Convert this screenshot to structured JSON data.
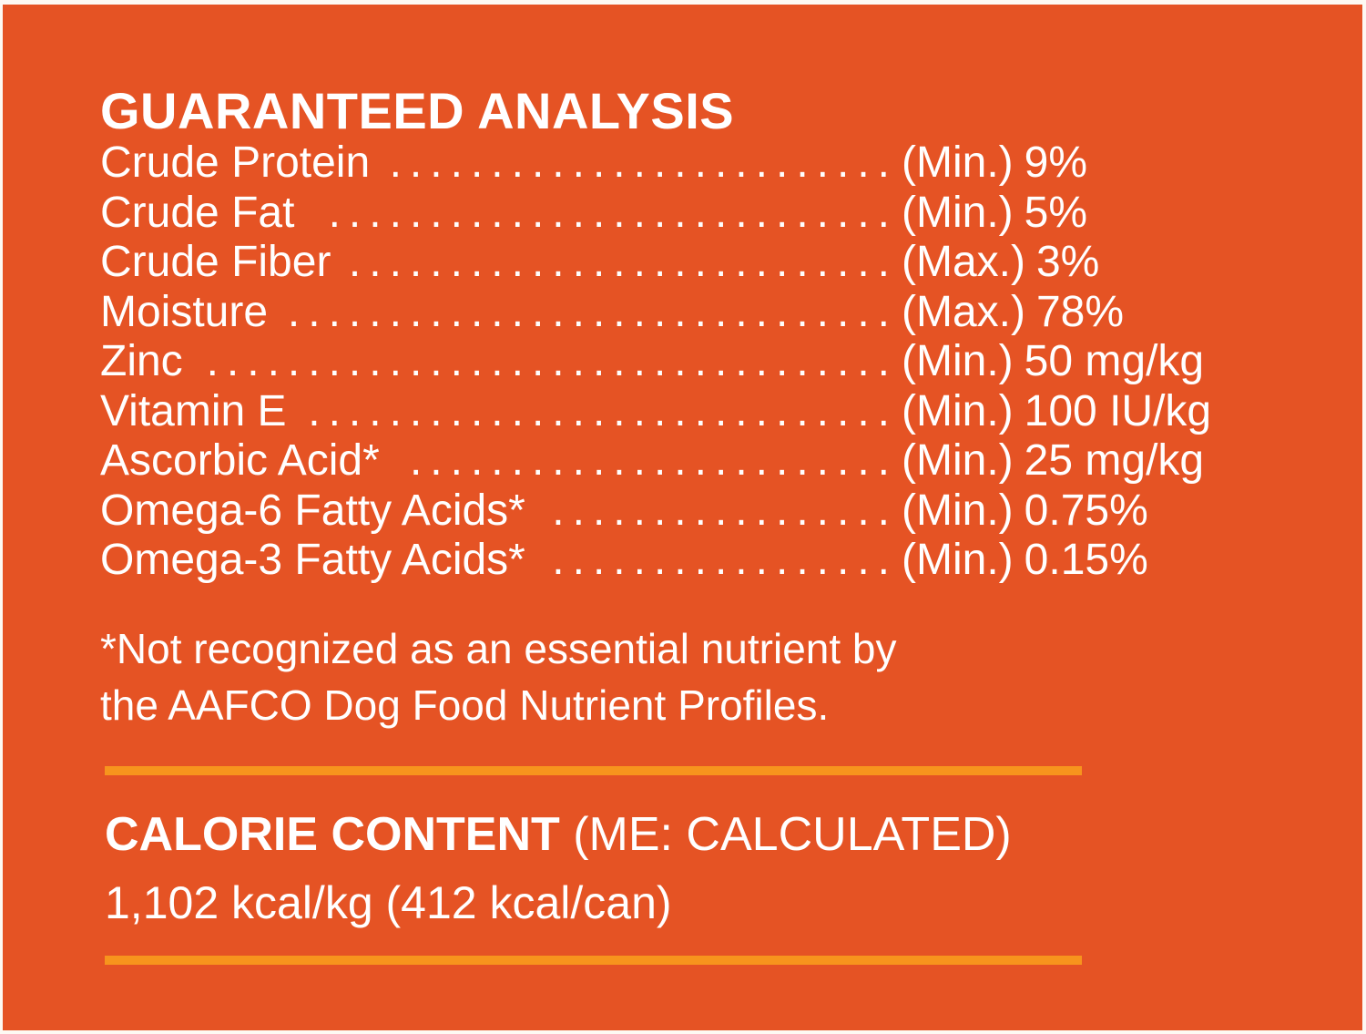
{
  "colors": {
    "background": "#E55324",
    "accent": "#F7941D",
    "text": "#FFFFFF"
  },
  "guaranteed_analysis": {
    "title": "GUARANTEED ANALYSIS",
    "rows": [
      {
        "label": "Crude Protein",
        "qualifier": "(Min.)",
        "value": "9%"
      },
      {
        "label": "Crude Fat",
        "qualifier": "(Min.)",
        "value": "5%"
      },
      {
        "label": "Crude Fiber",
        "qualifier": "(Max.)",
        "value": "3%"
      },
      {
        "label": "Moisture",
        "qualifier": "(Max.)",
        "value": "78%"
      },
      {
        "label": "Zinc",
        "qualifier": "(Min.)",
        "value": "50 mg/kg"
      },
      {
        "label": "Vitamin E",
        "qualifier": "(Min.)",
        "value": "100 IU/kg"
      },
      {
        "label": "Ascorbic Acid*",
        "qualifier": "(Min.)",
        "value": "25 mg/kg"
      },
      {
        "label": "Omega-6 Fatty Acids*",
        "qualifier": "(Min.)",
        "value": "0.75%"
      },
      {
        "label": "Omega-3 Fatty Acids*",
        "qualifier": "(Min.)",
        "value": "0.15%"
      }
    ],
    "footnote_line1": "*Not recognized as an essential nutrient by",
    "footnote_line2": "the AAFCO Dog Food Nutrient Profiles."
  },
  "calorie_content": {
    "title": "CALORIE CONTENT",
    "method": "(ME: CALCULATED)",
    "value": "1,102 kcal/kg (412 kcal/can)"
  }
}
